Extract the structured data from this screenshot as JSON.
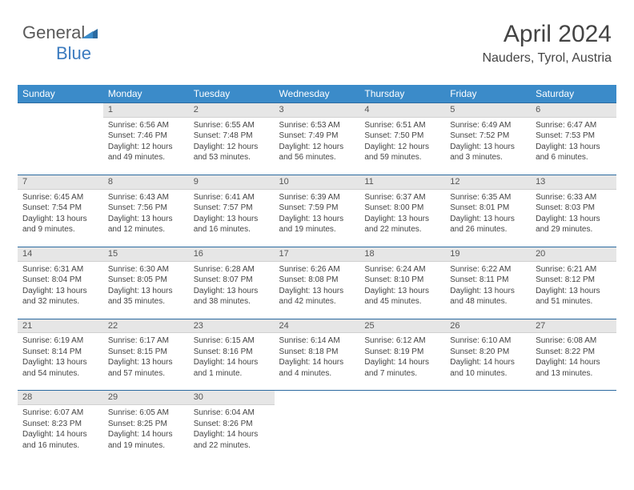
{
  "logo": {
    "text1": "General",
    "text2": "Blue"
  },
  "header": {
    "month": "April 2024",
    "location": "Nauders, Tyrol, Austria"
  },
  "colors": {
    "header_bg": "#3b8bc9",
    "header_border": "#2b6aa0",
    "daynum_bg": "#e6e6e6",
    "text": "#444444",
    "logo_gray": "#5a5a5a",
    "logo_blue": "#3b7bbf"
  },
  "weekdays": [
    "Sunday",
    "Monday",
    "Tuesday",
    "Wednesday",
    "Thursday",
    "Friday",
    "Saturday"
  ],
  "weeks": [
    {
      "nums": [
        "",
        "1",
        "2",
        "3",
        "4",
        "5",
        "6"
      ],
      "cells": [
        null,
        {
          "sunrise": "6:56 AM",
          "sunset": "7:46 PM",
          "daylight": "12 hours and 49 minutes."
        },
        {
          "sunrise": "6:55 AM",
          "sunset": "7:48 PM",
          "daylight": "12 hours and 53 minutes."
        },
        {
          "sunrise": "6:53 AM",
          "sunset": "7:49 PM",
          "daylight": "12 hours and 56 minutes."
        },
        {
          "sunrise": "6:51 AM",
          "sunset": "7:50 PM",
          "daylight": "12 hours and 59 minutes."
        },
        {
          "sunrise": "6:49 AM",
          "sunset": "7:52 PM",
          "daylight": "13 hours and 3 minutes."
        },
        {
          "sunrise": "6:47 AM",
          "sunset": "7:53 PM",
          "daylight": "13 hours and 6 minutes."
        }
      ]
    },
    {
      "nums": [
        "7",
        "8",
        "9",
        "10",
        "11",
        "12",
        "13"
      ],
      "cells": [
        {
          "sunrise": "6:45 AM",
          "sunset": "7:54 PM",
          "daylight": "13 hours and 9 minutes."
        },
        {
          "sunrise": "6:43 AM",
          "sunset": "7:56 PM",
          "daylight": "13 hours and 12 minutes."
        },
        {
          "sunrise": "6:41 AM",
          "sunset": "7:57 PM",
          "daylight": "13 hours and 16 minutes."
        },
        {
          "sunrise": "6:39 AM",
          "sunset": "7:59 PM",
          "daylight": "13 hours and 19 minutes."
        },
        {
          "sunrise": "6:37 AM",
          "sunset": "8:00 PM",
          "daylight": "13 hours and 22 minutes."
        },
        {
          "sunrise": "6:35 AM",
          "sunset": "8:01 PM",
          "daylight": "13 hours and 26 minutes."
        },
        {
          "sunrise": "6:33 AM",
          "sunset": "8:03 PM",
          "daylight": "13 hours and 29 minutes."
        }
      ]
    },
    {
      "nums": [
        "14",
        "15",
        "16",
        "17",
        "18",
        "19",
        "20"
      ],
      "cells": [
        {
          "sunrise": "6:31 AM",
          "sunset": "8:04 PM",
          "daylight": "13 hours and 32 minutes."
        },
        {
          "sunrise": "6:30 AM",
          "sunset": "8:05 PM",
          "daylight": "13 hours and 35 minutes."
        },
        {
          "sunrise": "6:28 AM",
          "sunset": "8:07 PM",
          "daylight": "13 hours and 38 minutes."
        },
        {
          "sunrise": "6:26 AM",
          "sunset": "8:08 PM",
          "daylight": "13 hours and 42 minutes."
        },
        {
          "sunrise": "6:24 AM",
          "sunset": "8:10 PM",
          "daylight": "13 hours and 45 minutes."
        },
        {
          "sunrise": "6:22 AM",
          "sunset": "8:11 PM",
          "daylight": "13 hours and 48 minutes."
        },
        {
          "sunrise": "6:21 AM",
          "sunset": "8:12 PM",
          "daylight": "13 hours and 51 minutes."
        }
      ]
    },
    {
      "nums": [
        "21",
        "22",
        "23",
        "24",
        "25",
        "26",
        "27"
      ],
      "cells": [
        {
          "sunrise": "6:19 AM",
          "sunset": "8:14 PM",
          "daylight": "13 hours and 54 minutes."
        },
        {
          "sunrise": "6:17 AM",
          "sunset": "8:15 PM",
          "daylight": "13 hours and 57 minutes."
        },
        {
          "sunrise": "6:15 AM",
          "sunset": "8:16 PM",
          "daylight": "14 hours and 1 minute."
        },
        {
          "sunrise": "6:14 AM",
          "sunset": "8:18 PM",
          "daylight": "14 hours and 4 minutes."
        },
        {
          "sunrise": "6:12 AM",
          "sunset": "8:19 PM",
          "daylight": "14 hours and 7 minutes."
        },
        {
          "sunrise": "6:10 AM",
          "sunset": "8:20 PM",
          "daylight": "14 hours and 10 minutes."
        },
        {
          "sunrise": "6:08 AM",
          "sunset": "8:22 PM",
          "daylight": "14 hours and 13 minutes."
        }
      ]
    },
    {
      "nums": [
        "28",
        "29",
        "30",
        "",
        "",
        "",
        ""
      ],
      "cells": [
        {
          "sunrise": "6:07 AM",
          "sunset": "8:23 PM",
          "daylight": "14 hours and 16 minutes."
        },
        {
          "sunrise": "6:05 AM",
          "sunset": "8:25 PM",
          "daylight": "14 hours and 19 minutes."
        },
        {
          "sunrise": "6:04 AM",
          "sunset": "8:26 PM",
          "daylight": "14 hours and 22 minutes."
        },
        null,
        null,
        null,
        null
      ]
    }
  ],
  "labels": {
    "sunrise": "Sunrise:",
    "sunset": "Sunset:",
    "daylight": "Daylight:"
  }
}
